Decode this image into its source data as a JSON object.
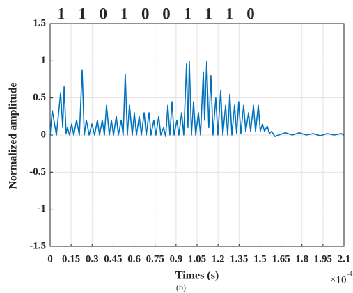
{
  "chart_data": {
    "type": "line",
    "annotation": "1 1 0 1 0 0 1 1 1 0",
    "x_label": "Times (s)",
    "y_label": "Normalized amplitude",
    "caption": "(b)",
    "x_multiplier": {
      "base": "×10",
      "exponent": "-4"
    },
    "xlim": [
      0,
      2.1
    ],
    "xticks": [
      0,
      0.15,
      0.3,
      0.45,
      0.6,
      0.75,
      0.9,
      1.05,
      1.2,
      1.35,
      1.5,
      1.65,
      1.8,
      1.95,
      2.1
    ],
    "ylim": [
      -1.5,
      1.5
    ],
    "yticks": [
      -1.5,
      -1,
      -0.5,
      0,
      0.5,
      1,
      1.5
    ],
    "grid": true,
    "series": [
      {
        "name": "signal",
        "color": "#0072BD",
        "x": [
          0,
          0.015,
          0.045,
          0.075,
          0.09,
          0.1,
          0.114,
          0.124,
          0.139,
          0.154,
          0.169,
          0.189,
          0.209,
          0.229,
          0.244,
          0.259,
          0.279,
          0.299,
          0.318,
          0.338,
          0.353,
          0.373,
          0.388,
          0.403,
          0.423,
          0.438,
          0.453,
          0.473,
          0.488,
          0.508,
          0.522,
          0.537,
          0.552,
          0.567,
          0.587,
          0.602,
          0.617,
          0.637,
          0.652,
          0.672,
          0.687,
          0.707,
          0.721,
          0.741,
          0.756,
          0.776,
          0.791,
          0.811,
          0.826,
          0.841,
          0.856,
          0.871,
          0.886,
          0.906,
          0.92,
          0.94,
          0.955,
          0.975,
          0.985,
          0.995,
          1.01,
          1.025,
          1.04,
          1.06,
          1.075,
          1.095,
          1.104,
          1.119,
          1.134,
          1.149,
          1.164,
          1.184,
          1.199,
          1.219,
          1.234,
          1.254,
          1.269,
          1.284,
          1.299,
          1.318,
          1.333,
          1.348,
          1.363,
          1.383,
          1.398,
          1.418,
          1.433,
          1.453,
          1.468,
          1.488,
          1.502,
          1.517,
          1.532,
          1.552,
          1.567,
          1.582,
          1.607,
          1.632,
          1.682,
          1.731,
          1.781,
          1.831,
          1.881,
          1.93,
          1.98,
          2.03,
          2.08,
          2.1
        ],
        "values": [
          0,
          0.33,
          0,
          0.57,
          0.1,
          0.65,
          0.02,
          0.1,
          0,
          0.15,
          0,
          0.2,
          0,
          0.88,
          0,
          0.2,
          0,
          0.15,
          0,
          0.2,
          0,
          0.2,
          0,
          0.4,
          0,
          0.2,
          0,
          0.25,
          0,
          0.2,
          0,
          0.82,
          0,
          0.4,
          0,
          0.3,
          0,
          0.25,
          0,
          0.3,
          0,
          0.3,
          0,
          0.2,
          0,
          0.25,
          0,
          0.1,
          -0.02,
          0.4,
          0,
          0.45,
          0,
          0.2,
          0,
          0.3,
          0,
          0.96,
          0.1,
          0.99,
          0,
          0.45,
          0,
          0.3,
          0,
          0.85,
          0.2,
          0.99,
          0.1,
          0.8,
          0,
          0.5,
          0,
          0.6,
          0,
          0.4,
          0,
          0.55,
          0,
          0.4,
          0.02,
          0.45,
          0.02,
          0.4,
          0.05,
          0.3,
          0.05,
          0.4,
          0.05,
          0.4,
          0.05,
          0.15,
          0.05,
          0.12,
          0.02,
          0.05,
          -0.02,
          0,
          0.03,
          0,
          0.03,
          0,
          0.02,
          -0.01,
          0.02,
          0,
          0.02,
          0
        ]
      }
    ]
  }
}
